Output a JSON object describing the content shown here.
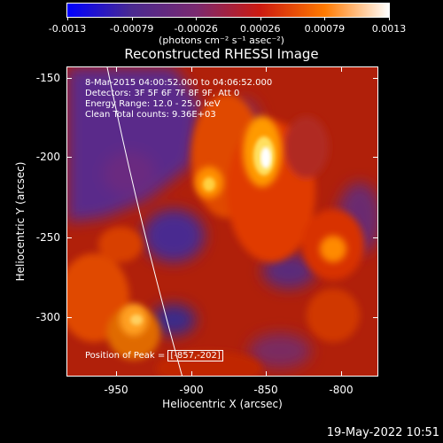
{
  "colorbar": {
    "labels": [
      "-0.0013",
      "-0.00079",
      "-0.00026",
      "0.00026",
      "0.00079",
      "0.0013"
    ],
    "unit": "(photons cm⁻² s⁻¹ asec⁻²)",
    "colors": [
      "#0000ff",
      "#4a2a90",
      "#7a2a70",
      "#cc1a10",
      "#ff7a00",
      "#ffffff"
    ]
  },
  "title": "Reconstructed RHESSI Image",
  "info": {
    "line1": "8-Mar-2015 04:00:52.000 to 04:06:52.000",
    "line2": "Detectors: 3F 5F 6F 7F 8F 9F, Att 0",
    "line3": "Energy Range: 12.0 - 25.0 keV",
    "line4": "Clean    Total counts: 9.36E+03"
  },
  "peak": {
    "label": "Position of Peak =",
    "value": "[-857,-202]"
  },
  "axes": {
    "xlabel": "Heliocentric X (arcsec)",
    "ylabel": "Heliocentric Y (arcsec)",
    "xticks": [
      "-950",
      "-900",
      "-850",
      "-800"
    ],
    "yticks": [
      "-150",
      "-200",
      "-250",
      "-300"
    ]
  },
  "timestamp": "19-May-2022 10:51"
}
